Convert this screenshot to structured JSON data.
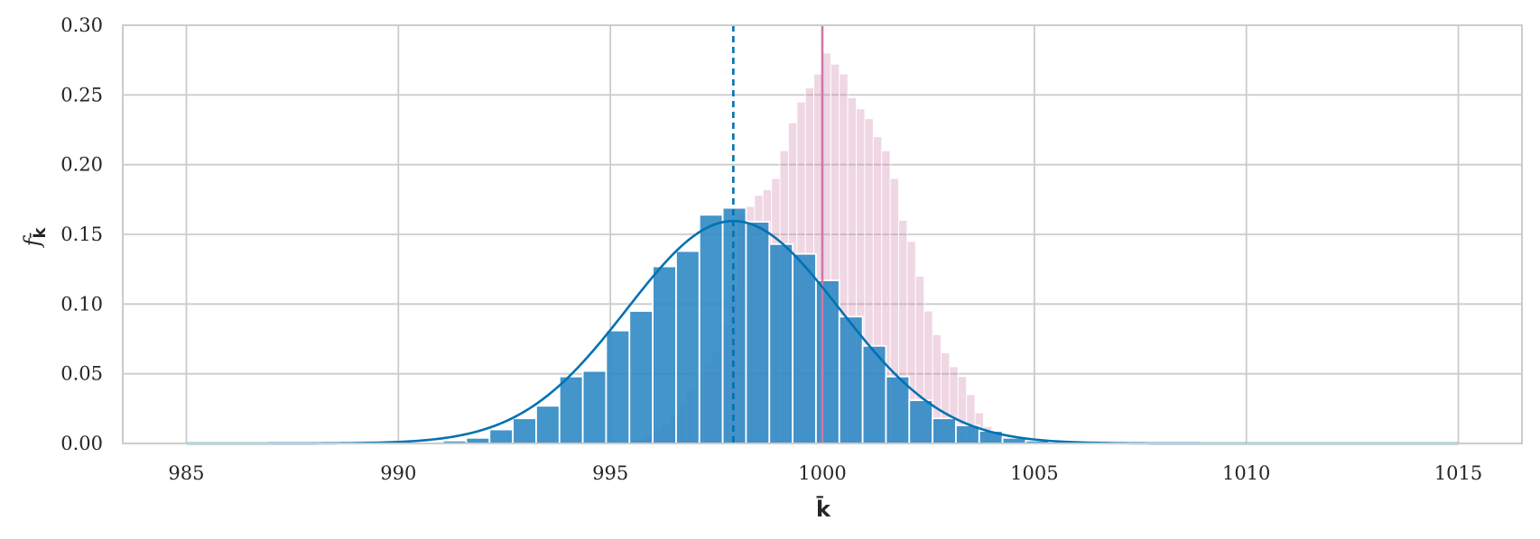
{
  "chart_data": {
    "type": "bar",
    "title": "",
    "xlabel": "k̄",
    "ylabel": "f",
    "ylabel_subscript": "k̄",
    "xlim": [
      983.5,
      1016.5
    ],
    "ylim": [
      0,
      0.3
    ],
    "x_ticks": [
      985,
      990,
      995,
      1000,
      1005,
      1010,
      1015
    ],
    "x_tick_labels": [
      "985",
      "990",
      "995",
      "1000",
      "1005",
      "1010",
      "1015"
    ],
    "y_ticks": [
      0.0,
      0.05,
      0.1,
      0.15,
      0.2,
      0.25,
      0.3
    ],
    "y_tick_labels": [
      "0.00",
      "0.05",
      "0.10",
      "0.15",
      "0.20",
      "0.25",
      "0.30"
    ],
    "grid": true,
    "series": [
      {
        "kind": "histogram",
        "color": "#2f8ac4",
        "bin_width": 0.55,
        "bins_start": [
          990.5,
          991.05,
          991.6,
          992.15,
          992.7,
          993.25,
          993.8,
          994.35,
          994.9,
          995.45,
          996.0,
          996.55,
          997.1,
          997.65,
          998.2,
          998.75,
          999.3,
          999.85,
          1000.4,
          1000.95,
          1001.5,
          1002.05,
          1002.6,
          1003.15,
          1003.7,
          1004.25,
          1004.8,
          1005.35
        ],
        "values": [
          0.001,
          0.002,
          0.004,
          0.01,
          0.018,
          0.027,
          0.048,
          0.052,
          0.081,
          0.095,
          0.127,
          0.138,
          0.164,
          0.169,
          0.159,
          0.143,
          0.136,
          0.117,
          0.091,
          0.07,
          0.048,
          0.031,
          0.018,
          0.013,
          0.009,
          0.004,
          0.002,
          0.001
        ]
      },
      {
        "kind": "histogram",
        "color": "#cc79a7",
        "bin_width": 0.2,
        "bins_start": [
          995.6,
          995.8,
          996.0,
          996.2,
          996.4,
          996.6,
          996.8,
          997.0,
          997.2,
          997.4,
          997.6,
          997.8,
          998.0,
          998.2,
          998.4,
          998.6,
          998.8,
          999.0,
          999.2,
          999.4,
          999.6,
          999.8,
          1000.0,
          1000.2,
          1000.4,
          1000.6,
          1000.8,
          1001.0,
          1001.2,
          1001.4,
          1001.6,
          1001.8,
          1002.0,
          1002.2,
          1002.4,
          1002.6,
          1002.8,
          1003.0,
          1003.2,
          1003.4,
          1003.6,
          1003.8,
          1004.0
        ],
        "values": [
          0.003,
          0.006,
          0.01,
          0.014,
          0.02,
          0.028,
          0.038,
          0.05,
          0.058,
          0.066,
          0.085,
          0.11,
          0.165,
          0.17,
          0.178,
          0.182,
          0.19,
          0.21,
          0.23,
          0.245,
          0.255,
          0.265,
          0.28,
          0.272,
          0.265,
          0.248,
          0.24,
          0.233,
          0.22,
          0.21,
          0.19,
          0.16,
          0.145,
          0.12,
          0.095,
          0.078,
          0.065,
          0.055,
          0.048,
          0.035,
          0.022,
          0.012,
          0.008
        ]
      },
      {
        "kind": "density",
        "color": "#0072b2",
        "mean": 997.9,
        "std": 2.5,
        "x_range": [
          985,
          1015
        ]
      }
    ],
    "vlines": [
      {
        "x": 997.9,
        "style": "dashed",
        "color": "#0072b2"
      },
      {
        "x": 1000.0,
        "style": "solid",
        "color": "#cc79a7"
      }
    ]
  }
}
